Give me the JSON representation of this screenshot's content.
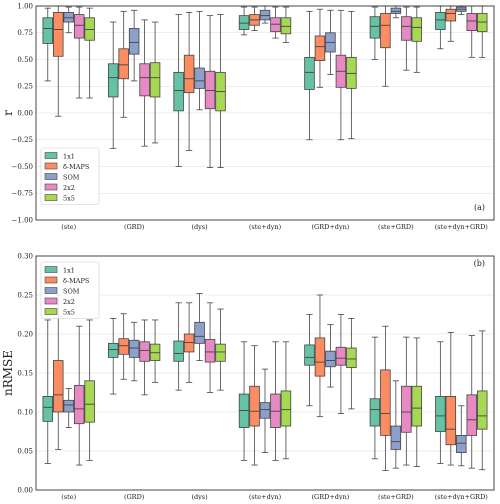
{
  "colors": {
    "1x1": "#66c2a5",
    "δ-MAPS": "#fc8d62",
    "SOM": "#8da0cb",
    "2x2": "#e78ac3",
    "5x5": "#a6d854"
  },
  "chart_data": [
    {
      "type": "box",
      "panel": "(a)",
      "ylabel": "r",
      "ylim": [
        -1.0,
        1.0
      ],
      "yticks": [
        -1.0,
        -0.75,
        -0.5,
        -0.25,
        0.0,
        0.25,
        0.5,
        0.75,
        1.0
      ],
      "ytick_labels": [
        "−1.00",
        "−0.75",
        "−0.50",
        "−0.25",
        "0.00",
        "0.25",
        "0.50",
        "0.75",
        "1.00"
      ],
      "grid": true,
      "legend": "bottom-left",
      "categories": [
        "(ste)",
        "(GRD)",
        "(dys)",
        "(ste+dyn)",
        "(GRD+dyn)",
        "(ste+GRD)",
        "(ste+dyn+GRD)"
      ],
      "series": [
        {
          "name": "1x1",
          "boxes": [
            [
              0.3,
              0.65,
              0.79,
              0.89,
              0.98
            ],
            [
              -0.33,
              0.15,
              0.33,
              0.46,
              0.85
            ],
            [
              -0.5,
              0.02,
              0.21,
              0.38,
              0.92
            ],
            [
              0.73,
              0.78,
              0.84,
              0.91,
              0.99
            ],
            [
              -0.25,
              0.22,
              0.38,
              0.52,
              0.95
            ],
            [
              0.5,
              0.7,
              0.81,
              0.9,
              0.99
            ],
            [
              0.6,
              0.78,
              0.87,
              0.94,
              1.0
            ]
          ]
        },
        {
          "name": "δ-MAPS",
          "boxes": [
            [
              -0.03,
              0.53,
              0.78,
              0.94,
              1.0
            ],
            [
              -0.04,
              0.32,
              0.45,
              0.6,
              0.95
            ],
            [
              -0.35,
              0.19,
              0.32,
              0.54,
              0.94
            ],
            [
              0.77,
              0.82,
              0.87,
              0.92,
              0.99
            ],
            [
              0.24,
              0.49,
              0.62,
              0.72,
              0.97
            ],
            [
              0.25,
              0.61,
              0.82,
              0.93,
              1.0
            ],
            [
              0.67,
              0.86,
              0.93,
              0.97,
              1.0
            ]
          ]
        },
        {
          "name": "SOM",
          "boxes": [
            [
              0.75,
              0.85,
              0.89,
              0.94,
              0.99
            ],
            [
              0.3,
              0.55,
              0.66,
              0.79,
              0.96
            ],
            [
              0.03,
              0.23,
              0.3,
              0.42,
              0.95
            ],
            [
              0.84,
              0.87,
              0.91,
              0.96,
              1.0
            ],
            [
              0.36,
              0.57,
              0.66,
              0.75,
              0.96
            ],
            [
              0.89,
              0.93,
              0.95,
              0.98,
              1.0
            ],
            [
              0.92,
              0.95,
              0.97,
              0.99,
              1.0
            ]
          ]
        },
        {
          "name": "2x2",
          "boxes": [
            [
              0.14,
              0.7,
              0.82,
              0.92,
              0.99
            ],
            [
              -0.31,
              0.16,
              0.33,
              0.46,
              0.87
            ],
            [
              -0.51,
              0.04,
              0.21,
              0.39,
              0.91
            ],
            [
              0.7,
              0.76,
              0.83,
              0.89,
              0.99
            ],
            [
              -0.25,
              0.24,
              0.39,
              0.54,
              0.96
            ],
            [
              0.4,
              0.68,
              0.81,
              0.9,
              0.99
            ],
            [
              0.52,
              0.77,
              0.86,
              0.93,
              1.0
            ]
          ]
        },
        {
          "name": "5x5",
          "boxes": [
            [
              0.14,
              0.68,
              0.78,
              0.89,
              0.98
            ],
            [
              -0.28,
              0.15,
              0.33,
              0.47,
              0.85
            ],
            [
              -0.51,
              0.02,
              0.2,
              0.38,
              0.92
            ],
            [
              0.66,
              0.74,
              0.81,
              0.89,
              0.99
            ],
            [
              -0.24,
              0.23,
              0.37,
              0.52,
              0.95
            ],
            [
              0.38,
              0.67,
              0.8,
              0.89,
              0.99
            ],
            [
              0.52,
              0.76,
              0.85,
              0.93,
              1.0
            ]
          ]
        }
      ]
    },
    {
      "type": "box",
      "panel": "(b)",
      "ylabel": "nRMSE",
      "ylim": [
        0.0,
        0.3
      ],
      "yticks": [
        0.0,
        0.05,
        0.1,
        0.15,
        0.2,
        0.25,
        0.3
      ],
      "ytick_labels": [
        "0.00",
        "0.05",
        "0.10",
        "0.15",
        "0.20",
        "0.25",
        "0.30"
      ],
      "grid": true,
      "legend": "top-left",
      "categories": [
        "(ste)",
        "(GRD)",
        "(dys)",
        "(ste+dyn)",
        "(GRD+dyn)",
        "(ste+GRD)",
        "(ste+dyn+GRD)"
      ],
      "series": [
        {
          "name": "1x1",
          "boxes": [
            [
              0.034,
              0.088,
              0.106,
              0.12,
              0.218
            ],
            [
              0.123,
              0.17,
              0.18,
              0.188,
              0.22
            ],
            [
              0.128,
              0.165,
              0.175,
              0.191,
              0.24
            ],
            [
              0.038,
              0.08,
              0.102,
              0.123,
              0.19
            ],
            [
              0.108,
              0.16,
              0.17,
              0.186,
              0.225
            ],
            [
              0.04,
              0.082,
              0.103,
              0.117,
              0.196
            ],
            [
              0.034,
              0.075,
              0.095,
              0.12,
              0.19
            ]
          ]
        },
        {
          "name": "δ-MAPS",
          "boxes": [
            [
              0.052,
              0.1,
              0.122,
              0.166,
              0.25
            ],
            [
              0.142,
              0.174,
              0.185,
              0.194,
              0.226
            ],
            [
              0.138,
              0.177,
              0.189,
              0.2,
              0.24
            ],
            [
              0.032,
              0.082,
              0.101,
              0.133,
              0.185
            ],
            [
              0.094,
              0.146,
              0.164,
              0.195,
              0.25
            ],
            [
              0.025,
              0.07,
              0.098,
              0.154,
              0.21
            ],
            [
              0.032,
              0.058,
              0.078,
              0.12,
              0.202
            ]
          ]
        },
        {
          "name": "SOM",
          "boxes": [
            [
              0.08,
              0.1,
              0.109,
              0.115,
              0.13
            ],
            [
              0.14,
              0.17,
              0.182,
              0.192,
              0.215
            ],
            [
              0.166,
              0.188,
              0.197,
              0.215,
              0.252
            ],
            [
              0.048,
              0.092,
              0.103,
              0.112,
              0.155
            ],
            [
              0.132,
              0.158,
              0.166,
              0.178,
              0.212
            ],
            [
              0.028,
              0.052,
              0.062,
              0.082,
              0.14
            ],
            [
              0.031,
              0.048,
              0.06,
              0.07,
              0.108
            ]
          ]
        },
        {
          "name": "2x2",
          "boxes": [
            [
              0.032,
              0.085,
              0.104,
              0.134,
              0.21
            ],
            [
              0.122,
              0.165,
              0.179,
              0.19,
              0.218
            ],
            [
              0.125,
              0.164,
              0.177,
              0.193,
              0.24
            ],
            [
              0.038,
              0.08,
              0.101,
              0.123,
              0.19
            ],
            [
              0.098,
              0.16,
              0.169,
              0.183,
              0.225
            ],
            [
              0.032,
              0.074,
              0.1,
              0.133,
              0.196
            ],
            [
              0.028,
              0.07,
              0.09,
              0.122,
              0.198
            ]
          ]
        },
        {
          "name": "5x5",
          "boxes": [
            [
              0.038,
              0.087,
              0.11,
              0.14,
              0.218
            ],
            [
              0.138,
              0.166,
              0.176,
              0.187,
              0.218
            ],
            [
              0.128,
              0.165,
              0.177,
              0.187,
              0.232
            ],
            [
              0.04,
              0.082,
              0.103,
              0.127,
              0.19
            ],
            [
              0.104,
              0.157,
              0.168,
              0.182,
              0.22
            ],
            [
              0.03,
              0.082,
              0.105,
              0.133,
              0.195
            ],
            [
              0.026,
              0.078,
              0.095,
              0.127,
              0.204
            ]
          ]
        }
      ]
    }
  ]
}
